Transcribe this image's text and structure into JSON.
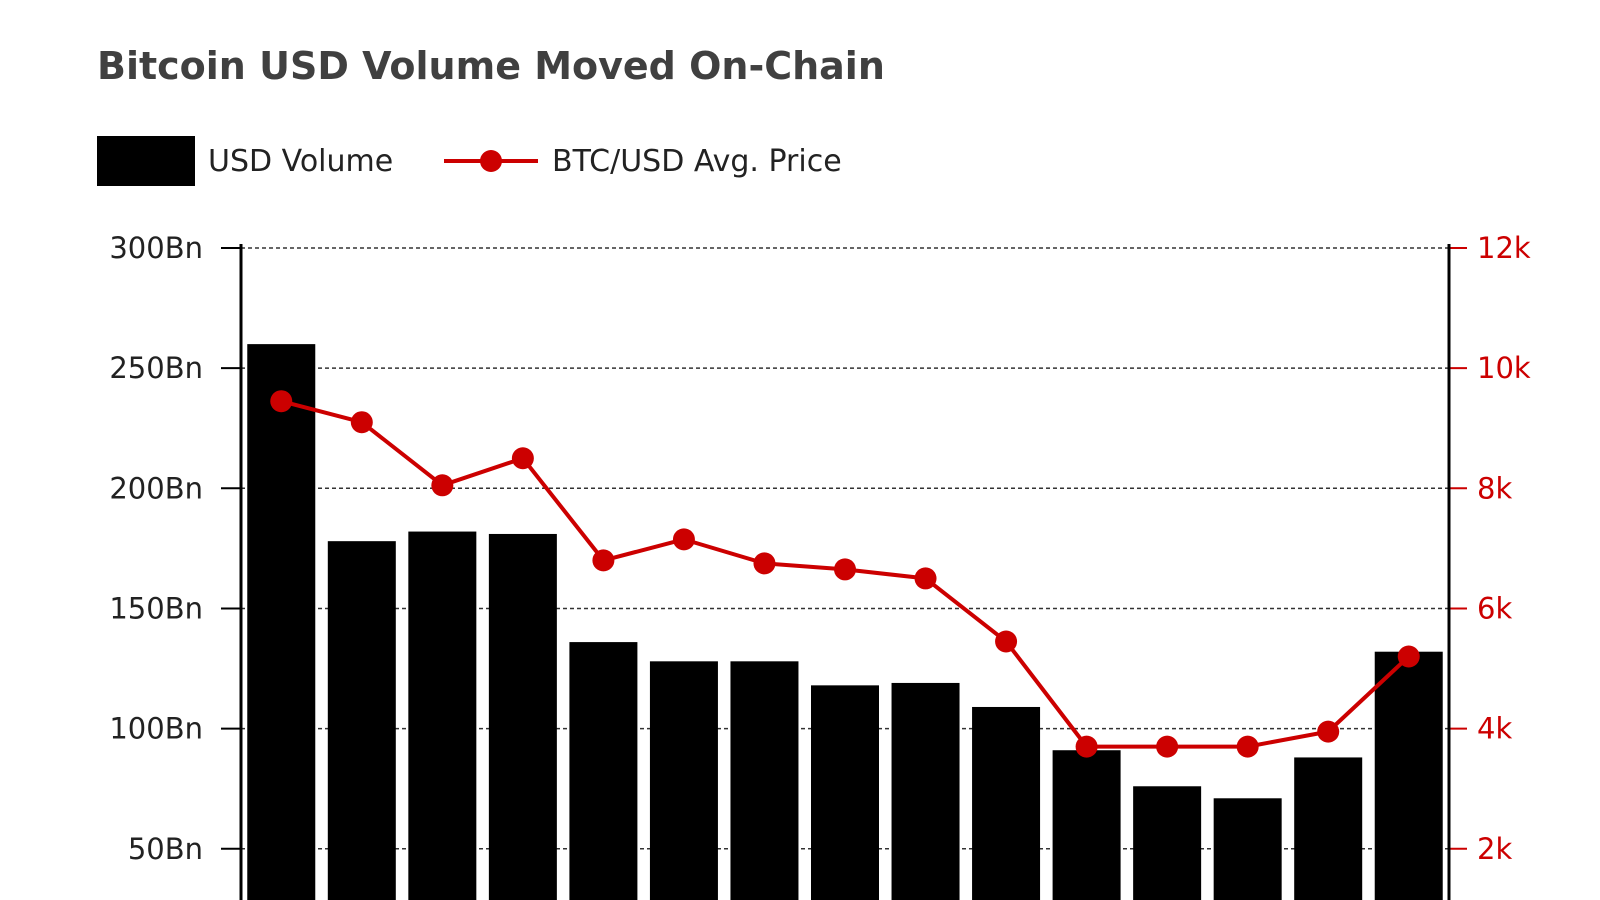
{
  "chart_data": {
    "type": "bar",
    "title": "Bitcoin USD Volume Moved On-Chain",
    "legend": {
      "placement": "top-left",
      "entries": [
        "USD Volume",
        "BTC/USD Avg. Price"
      ]
    },
    "grid": true,
    "y_left": {
      "range": [
        0,
        300
      ],
      "ticks": [
        50,
        100,
        150,
        200,
        250,
        300
      ],
      "tick_labels": [
        "50Bn",
        "100Bn",
        "150Bn",
        "200Bn",
        "250Bn",
        "300Bn"
      ]
    },
    "y_right": {
      "range": [
        0,
        12000
      ],
      "ticks": [
        2000,
        4000,
        6000,
        8000,
        10000,
        12000
      ],
      "tick_labels": [
        "2k",
        "4k",
        "6k",
        "8k",
        "10k",
        "12k"
      ],
      "color": "#cc0000"
    },
    "series": [
      {
        "name": "USD Volume",
        "type": "bar",
        "axis": "left",
        "color": "#000000",
        "values": [
          260,
          178,
          182,
          181,
          136,
          128,
          128,
          118,
          119,
          109,
          91,
          76,
          71,
          88,
          132
        ]
      },
      {
        "name": "BTC/USD Avg. Price",
        "type": "line",
        "axis": "right",
        "color": "#cc0000",
        "values": [
          9450,
          9100,
          8050,
          8500,
          6800,
          7150,
          6750,
          6650,
          6500,
          5450,
          3700,
          3700,
          3700,
          3950,
          5200
        ]
      }
    ]
  }
}
